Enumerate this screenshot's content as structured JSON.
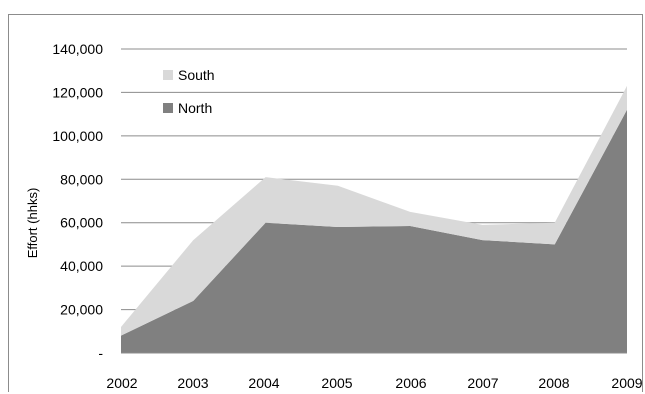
{
  "chart_data": {
    "type": "area",
    "stacked": true,
    "categories": [
      "2002",
      "2003",
      "2004",
      "2005",
      "2006",
      "2007",
      "2008",
      "2009"
    ],
    "series": [
      {
        "name": "North",
        "values": [
          8000,
          24000,
          60000,
          58000,
          58500,
          52000,
          50000,
          112000
        ],
        "color": "#808080"
      },
      {
        "name": "South",
        "values": [
          4000,
          28000,
          21000,
          19000,
          6500,
          7000,
          10000,
          11000
        ],
        "color": "#d9d9d9"
      }
    ],
    "ylabel": "Effort (hhks)",
    "xlabel": "",
    "ylim": [
      0,
      140000
    ],
    "yticks": [
      {
        "value": 0,
        "label": "-"
      },
      {
        "value": 20000,
        "label": "20,000"
      },
      {
        "value": 40000,
        "label": "40,000"
      },
      {
        "value": 60000,
        "label": "60,000"
      },
      {
        "value": 80000,
        "label": "80,000"
      },
      {
        "value": 100000,
        "label": "100,000"
      },
      {
        "value": 120000,
        "label": "120,000"
      },
      {
        "value": 140000,
        "label": "140,000"
      }
    ],
    "grid": true,
    "legend_position": "top-left",
    "legend_order": [
      "South",
      "North"
    ]
  }
}
